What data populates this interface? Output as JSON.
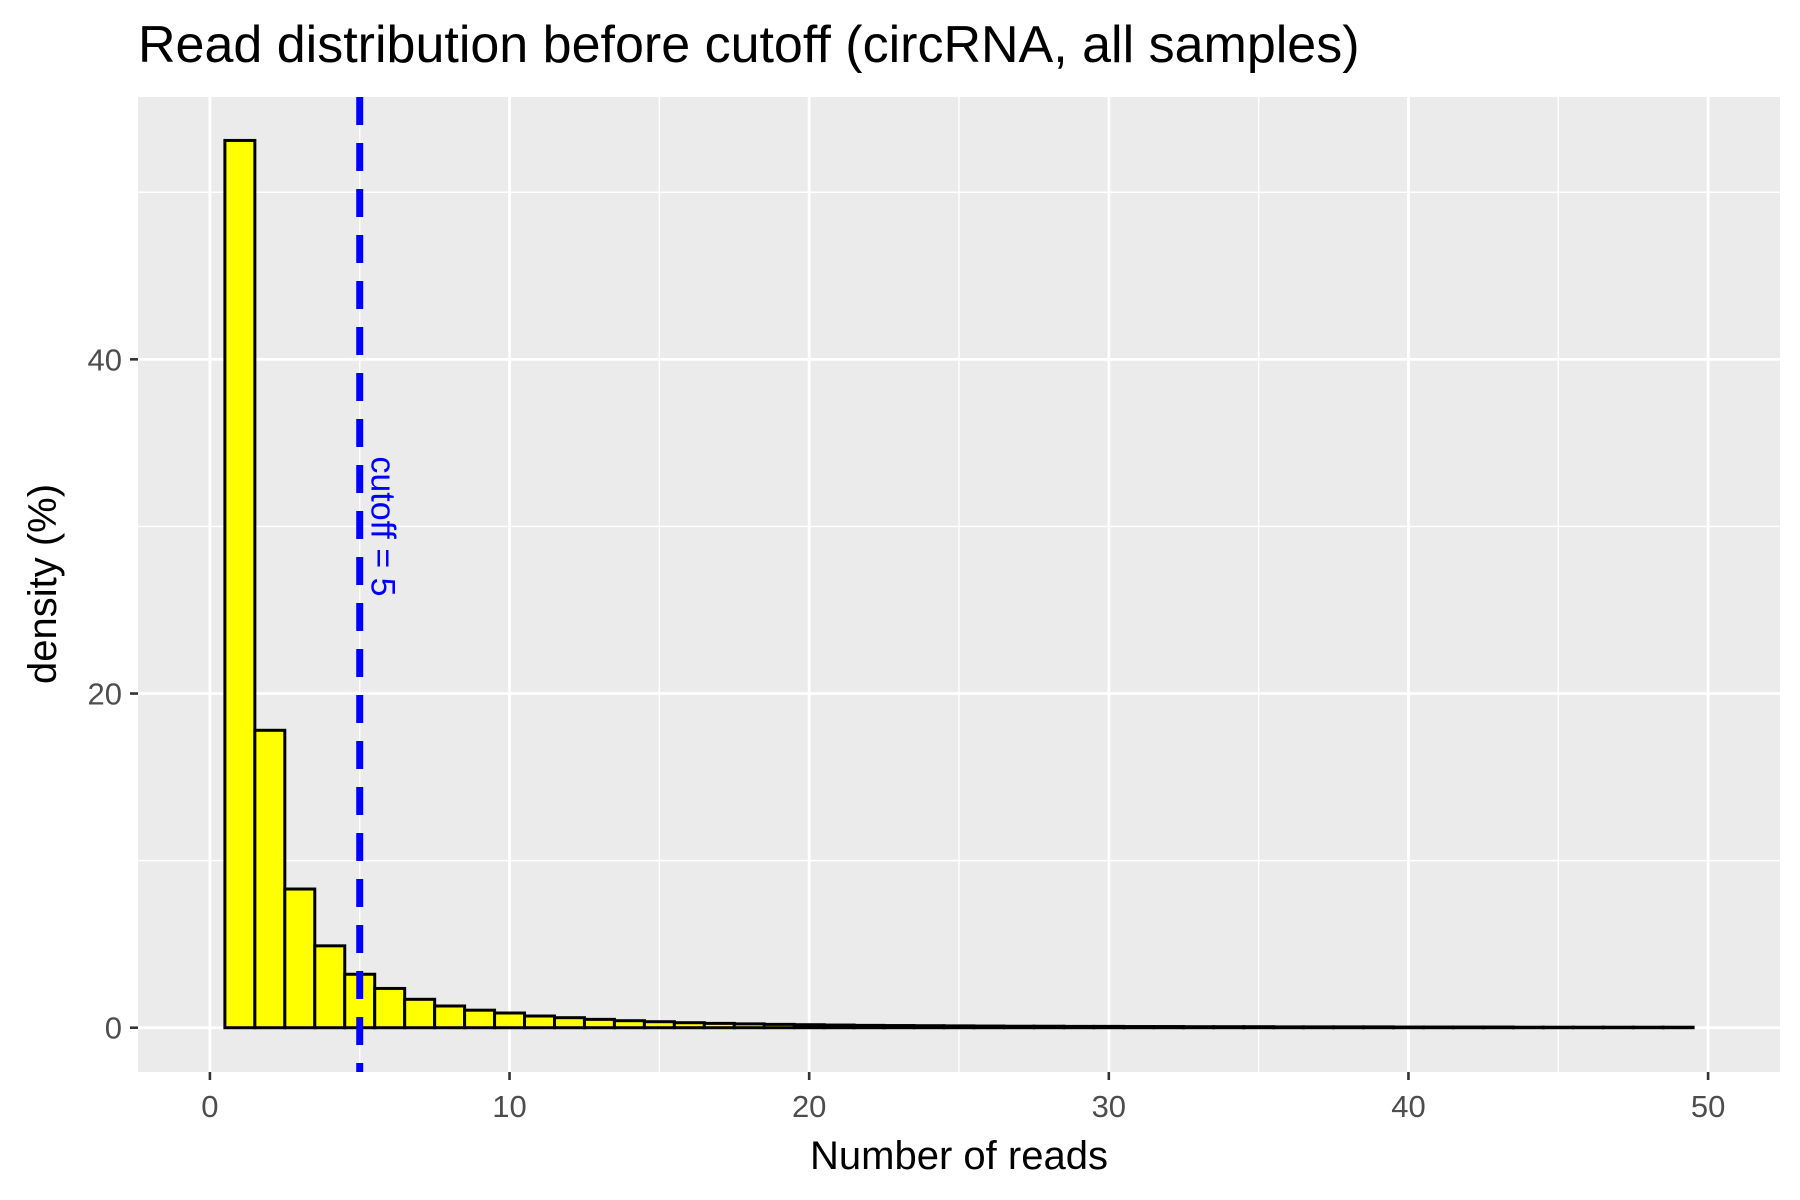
{
  "chart_data": {
    "type": "bar",
    "title": "Read distribution before cutoff (circRNA, all samples)",
    "xlabel": "Number of reads",
    "ylabel": "density (%)",
    "xlim": [
      -2.4,
      52.4
    ],
    "ylim": [
      -2.65,
      55.7
    ],
    "x_ticks": [
      0,
      10,
      20,
      30,
      40,
      50
    ],
    "y_ticks": [
      0,
      20,
      40
    ],
    "x_minor_grid": [
      5,
      15,
      25,
      35,
      45
    ],
    "y_minor_grid": [
      10,
      30,
      50
    ],
    "bin_width": 1,
    "bins": [
      1,
      2,
      3,
      4,
      5,
      6,
      7,
      8,
      9,
      10,
      11,
      12,
      13,
      14,
      15,
      16,
      17,
      18,
      19,
      20,
      21,
      22,
      23,
      24,
      25,
      26,
      27,
      28,
      29,
      30,
      31,
      32,
      33,
      34,
      35,
      36,
      37,
      38,
      39,
      40,
      41,
      42,
      43,
      44,
      45,
      46,
      47,
      48,
      49
    ],
    "values": [
      53.1,
      17.8,
      8.3,
      4.9,
      3.2,
      2.35,
      1.7,
      1.3,
      1.05,
      0.88,
      0.7,
      0.6,
      0.5,
      0.42,
      0.36,
      0.3,
      0.26,
      0.23,
      0.2,
      0.18,
      0.16,
      0.14,
      0.13,
      0.12,
      0.11,
      0.1,
      0.09,
      0.09,
      0.08,
      0.08,
      0.07,
      0.07,
      0.06,
      0.06,
      0.06,
      0.05,
      0.05,
      0.05,
      0.05,
      0.04,
      0.04,
      0.04,
      0.04,
      0.03,
      0.03,
      0.03,
      0.03,
      0.03,
      0.03
    ],
    "cutoff": {
      "value": 5,
      "label": "cutoff = 5",
      "color": "#0000ff"
    },
    "annotation_y": 30,
    "colors": {
      "bar_fill": "#ffff00",
      "bar_stroke": "#000000",
      "panel": "#ebebeb",
      "grid": "#ffffff"
    },
    "grid": true,
    "legend": "none"
  }
}
